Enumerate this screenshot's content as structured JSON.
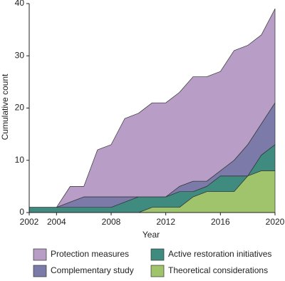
{
  "chart_data": {
    "type": "stacked-area",
    "x": [
      2002,
      2003,
      2004,
      2005,
      2006,
      2007,
      2008,
      2009,
      2010,
      2011,
      2012,
      2013,
      2014,
      2015,
      2016,
      2017,
      2018,
      2019,
      2020
    ],
    "series": [
      {
        "name": "Protection measures",
        "color": "#b89dc6",
        "values": [
          0,
          0,
          0,
          3,
          2,
          9,
          10,
          15,
          16,
          18,
          18,
          18,
          20,
          20,
          19,
          21,
          19,
          17,
          18
        ]
      },
      {
        "name": "Complementary study",
        "color": "#7b7aa9",
        "values": [
          0,
          0,
          0,
          1,
          2,
          2,
          2,
          1,
          0,
          0,
          0,
          1,
          2,
          1,
          1,
          3,
          6,
          6,
          8
        ]
      },
      {
        "name": "Active restoration initiatives",
        "color": "#408b80",
        "values": [
          1,
          1,
          1,
          1,
          1,
          1,
          1,
          2,
          3,
          2,
          2,
          3,
          1,
          1,
          3,
          3,
          0,
          3,
          5
        ]
      },
      {
        "name": "Theoretical considerations",
        "color": "#a0c46c",
        "values": [
          0,
          0,
          0,
          0,
          0,
          0,
          0,
          0,
          0,
          1,
          1,
          1,
          3,
          4,
          4,
          4,
          7,
          8,
          8
        ]
      }
    ],
    "xlabel": "Year",
    "ylabel": "Cumulative count",
    "xlim": [
      2002,
      2020
    ],
    "xticks": [
      2002,
      2004,
      2008,
      2012,
      2016,
      2020
    ],
    "ylim": [
      0,
      40
    ],
    "yticks": [
      0,
      10,
      20,
      30,
      40
    ]
  }
}
